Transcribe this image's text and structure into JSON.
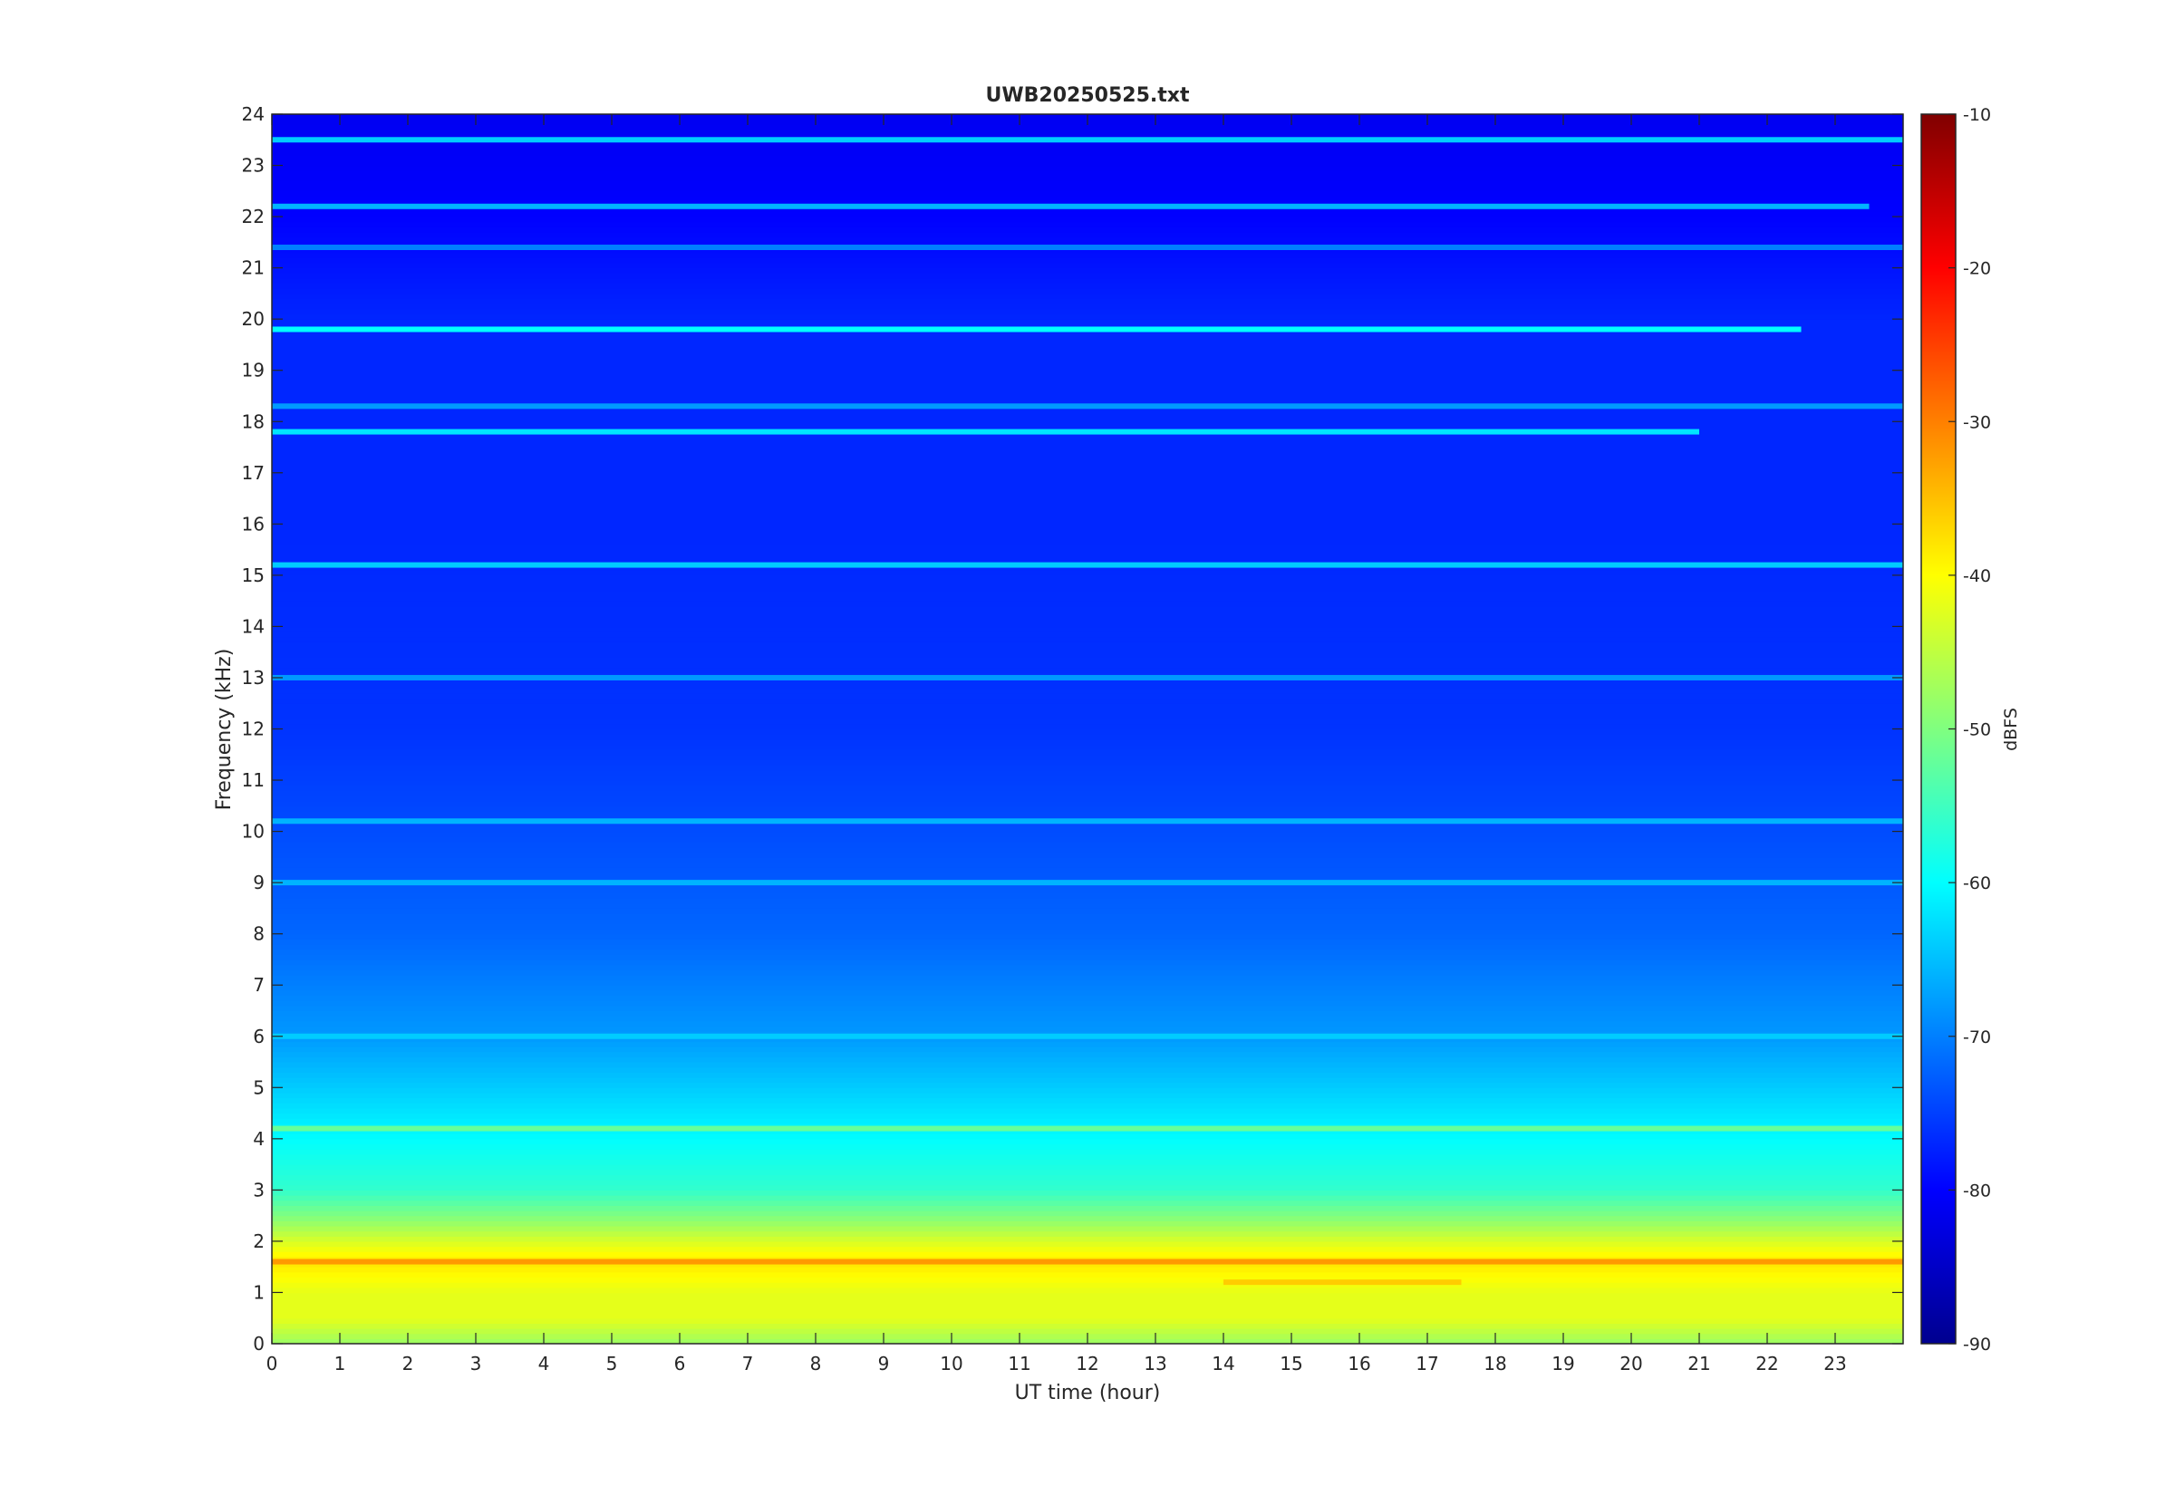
{
  "chart_data": {
    "type": "heatmap",
    "title": "UWB20250525.txt",
    "xlabel": "UT time (hour)",
    "ylabel": "Frequency (kHz)",
    "xlim": [
      0,
      24
    ],
    "ylim": [
      0,
      24
    ],
    "x_ticks": [
      0,
      1,
      2,
      3,
      4,
      5,
      6,
      7,
      8,
      9,
      10,
      11,
      12,
      13,
      14,
      15,
      16,
      17,
      18,
      19,
      20,
      21,
      22,
      23
    ],
    "y_ticks": [
      0,
      1,
      2,
      3,
      4,
      5,
      6,
      7,
      8,
      9,
      10,
      11,
      12,
      13,
      14,
      15,
      16,
      17,
      18,
      19,
      20,
      21,
      22,
      23,
      24
    ],
    "colorbar": {
      "label": "dBFS",
      "colormap": "jet",
      "range": [
        -90,
        -10
      ],
      "ticks": [
        -90,
        -80,
        -70,
        -60,
        -50,
        -40,
        -30,
        -20,
        -10
      ]
    },
    "intensity_profile_by_frequency": [
      {
        "freq_khz": 0,
        "dbfs": -48
      },
      {
        "freq_khz": 0.5,
        "dbfs": -42
      },
      {
        "freq_khz": 1,
        "dbfs": -42
      },
      {
        "freq_khz": 1.6,
        "dbfs": -38
      },
      {
        "freq_khz": 2,
        "dbfs": -43
      },
      {
        "freq_khz": 2.5,
        "dbfs": -50
      },
      {
        "freq_khz": 3,
        "dbfs": -56
      },
      {
        "freq_khz": 4,
        "dbfs": -60
      },
      {
        "freq_khz": 5,
        "dbfs": -64
      },
      {
        "freq_khz": 6,
        "dbfs": -68
      },
      {
        "freq_khz": 8,
        "dbfs": -72
      },
      {
        "freq_khz": 10,
        "dbfs": -74
      },
      {
        "freq_khz": 12,
        "dbfs": -76
      },
      {
        "freq_khz": 16,
        "dbfs": -77
      },
      {
        "freq_khz": 20,
        "dbfs": -77
      },
      {
        "freq_khz": 22,
        "dbfs": -80
      },
      {
        "freq_khz": 24,
        "dbfs": -81
      }
    ],
    "narrowband_lines": [
      {
        "freq_khz": 23.5,
        "dbfs": -64,
        "start_hour": 0,
        "end_hour": 24
      },
      {
        "freq_khz": 22.2,
        "dbfs": -66,
        "start_hour": 0,
        "end_hour": 23.5
      },
      {
        "freq_khz": 21.4,
        "dbfs": -70,
        "start_hour": 0,
        "end_hour": 24
      },
      {
        "freq_khz": 19.8,
        "dbfs": -60,
        "start_hour": 0,
        "end_hour": 22.5
      },
      {
        "freq_khz": 18.3,
        "dbfs": -68,
        "start_hour": 0,
        "end_hour": 24
      },
      {
        "freq_khz": 17.8,
        "dbfs": -62,
        "start_hour": 0,
        "end_hour": 21
      },
      {
        "freq_khz": 15.2,
        "dbfs": -64,
        "start_hour": 0,
        "end_hour": 24
      },
      {
        "freq_khz": 13.0,
        "dbfs": -68,
        "start_hour": 0,
        "end_hour": 24
      },
      {
        "freq_khz": 10.2,
        "dbfs": -66,
        "start_hour": 0,
        "end_hour": 24
      },
      {
        "freq_khz": 9.0,
        "dbfs": -66,
        "start_hour": 0,
        "end_hour": 24
      },
      {
        "freq_khz": 6.0,
        "dbfs": -64,
        "start_hour": 0,
        "end_hour": 24
      },
      {
        "freq_khz": 4.2,
        "dbfs": -52,
        "start_hour": 0,
        "end_hour": 24
      },
      {
        "freq_khz": 1.6,
        "dbfs": -32,
        "start_hour": 0,
        "end_hour": 24
      },
      {
        "freq_khz": 1.2,
        "dbfs": -36,
        "start_hour": 14,
        "end_hour": 17.5
      }
    ]
  }
}
